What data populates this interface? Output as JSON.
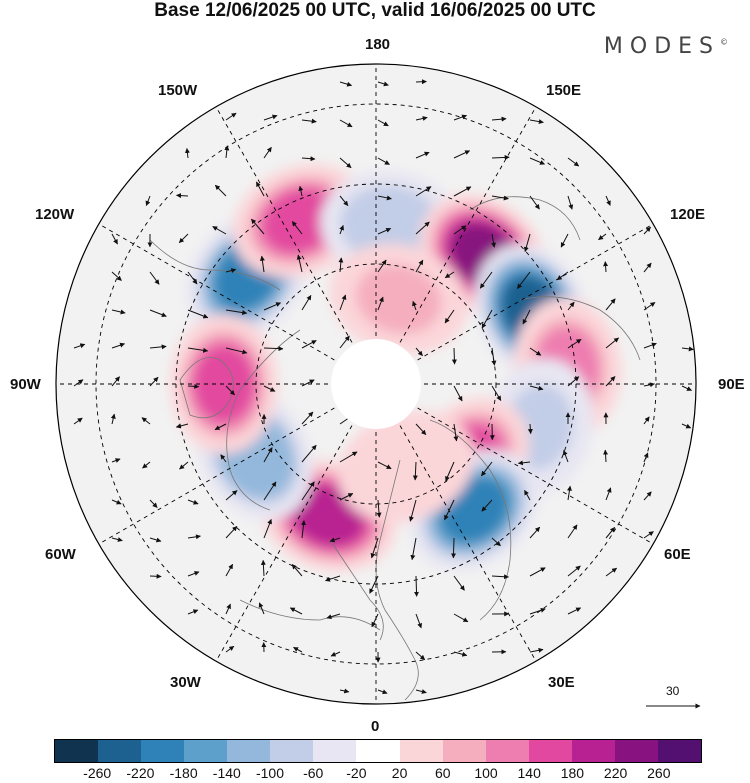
{
  "title": "Base 12/06/2025 00 UTC, valid 16/06/2025 00 UTC",
  "brand": "MODES",
  "brand_mark": "©",
  "longitude_labels": {
    "top": "180",
    "bottom": "0",
    "left": "90W",
    "right": "90E",
    "upper_left_1": "150W",
    "upper_left_2": "120W",
    "lower_left_1": "60W",
    "lower_left_2": "30W",
    "upper_right_1": "150E",
    "upper_right_2": "120E",
    "lower_right_1": "60E",
    "lower_right_2": "30E"
  },
  "reference_vector": "30",
  "colorbar": {
    "ticks": [
      "-260",
      "-220",
      "-180",
      "-140",
      "-100",
      "-60",
      "-20",
      "20",
      "60",
      "100",
      "140",
      "180",
      "220",
      "260"
    ],
    "colors": [
      "#10344f",
      "#1d6190",
      "#2f82b7",
      "#5da0cb",
      "#93b8db",
      "#c2cde7",
      "#e7e6f2",
      "#ffffff",
      "#fbd6d9",
      "#f5aebd",
      "#ee7db0",
      "#e2489f",
      "#b82191",
      "#88127f",
      "#541070"
    ]
  },
  "map_colors": {
    "land": "#a9a9a9",
    "graticule": "#000000",
    "arrow": "#111111",
    "ocean_background": "#ffffff"
  },
  "anomaly_centers": [
    {
      "lon": -130,
      "lat": 48,
      "value": -200
    },
    {
      "lon": -155,
      "lat": 45,
      "value": 160
    },
    {
      "lon": 175,
      "lat": 50,
      "value": -100
    },
    {
      "lon": 140,
      "lat": 48,
      "value": 220
    },
    {
      "lon": 115,
      "lat": 47,
      "value": -230
    },
    {
      "lon": 95,
      "lat": 42,
      "value": 120
    },
    {
      "lon": 75,
      "lat": 48,
      "value": -80
    },
    {
      "lon": 50,
      "lat": 60,
      "value": 140
    },
    {
      "lon": 38,
      "lat": 50,
      "value": -200
    },
    {
      "lon": -20,
      "lat": 55,
      "value": 180
    },
    {
      "lon": -60,
      "lat": 55,
      "value": -140
    },
    {
      "lon": -90,
      "lat": 52,
      "value": 150
    },
    {
      "lon": 165,
      "lat": 68,
      "value": 60
    },
    {
      "lon": 20,
      "lat": 68,
      "value": 50
    }
  ]
}
